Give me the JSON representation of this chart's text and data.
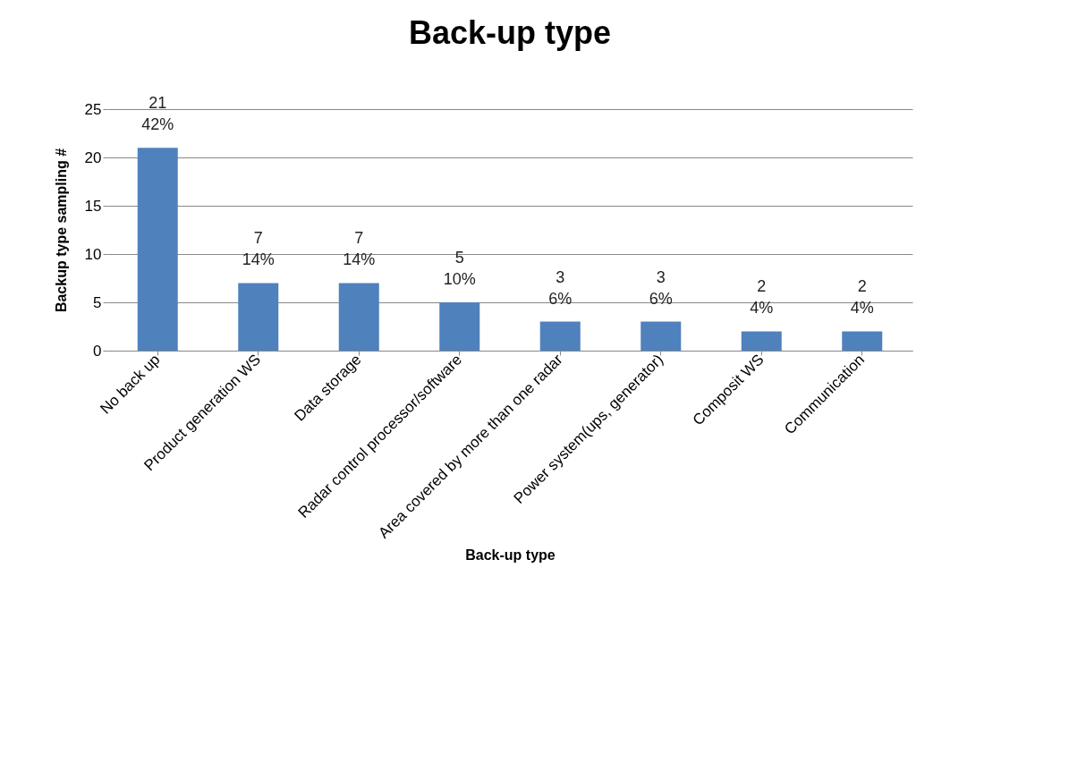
{
  "chart_data": {
    "type": "bar",
    "title": "Back-up type",
    "xlabel": "Back-up type",
    "ylabel": "Backup type sampling #",
    "categories": [
      "No back up",
      "Product generation WS",
      "Data storage",
      "Radar control processor/software",
      "Area covered by more than one radar",
      "Power system(ups, generator)",
      "Composit WS",
      "Communication"
    ],
    "values": [
      21,
      7,
      7,
      5,
      3,
      3,
      2,
      2
    ],
    "value_labels": [
      "21\n42%",
      "7\n14%",
      "7\n14%",
      "5\n10%",
      "3\n6%",
      "3\n6%",
      "2\n4%",
      "2\n4%"
    ],
    "color": "#4f81bd",
    "ylim": [
      0,
      25
    ],
    "yticks": [
      0,
      5,
      10,
      15,
      20,
      25
    ],
    "grid": "y"
  }
}
